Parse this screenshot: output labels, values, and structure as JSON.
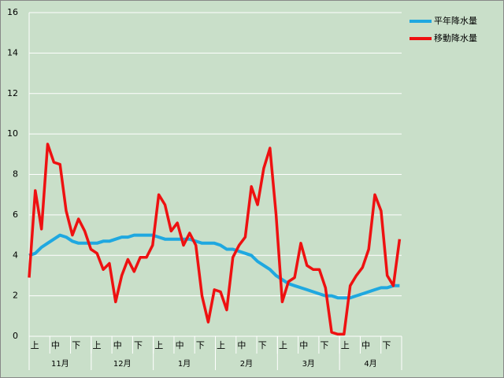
{
  "chart_data": {
    "type": "line",
    "x": [
      0,
      3,
      6,
      9,
      12,
      15,
      18,
      21,
      24,
      27,
      30,
      33,
      36,
      39,
      42,
      45,
      48,
      51,
      54,
      57,
      60,
      63,
      66,
      69,
      72,
      75,
      78,
      81,
      84,
      87,
      90,
      93,
      96,
      99,
      102,
      105,
      108,
      111,
      114,
      117,
      120,
      123,
      126,
      129,
      132,
      135,
      138,
      141,
      144,
      147,
      150,
      153,
      156,
      159,
      162,
      165,
      168,
      171,
      174,
      177,
      180
    ],
    "xlim": [
      0,
      181
    ],
    "month_groups": [
      {
        "label": "11月",
        "subs": [
          "上",
          "中",
          "下"
        ]
      },
      {
        "label": "12月",
        "subs": [
          "上",
          "中",
          "下"
        ]
      },
      {
        "label": "1月",
        "subs": [
          "上",
          "中",
          "下"
        ]
      },
      {
        "label": "2月",
        "subs": [
          "上",
          "中",
          "下"
        ]
      },
      {
        "label": "3月",
        "subs": [
          "上",
          "中",
          "下"
        ]
      },
      {
        "label": "4月",
        "subs": [
          "上",
          "中",
          "下"
        ]
      }
    ],
    "ylim": [
      0,
      16
    ],
    "yticks": [
      0,
      2,
      4,
      6,
      8,
      10,
      12,
      14,
      16
    ],
    "grid": true,
    "legend": "top-right",
    "series": [
      {
        "name": "平年降水量",
        "color": "#1fa8e0",
        "values": [
          4.0,
          4.1,
          4.4,
          4.6,
          4.8,
          5.0,
          4.9,
          4.7,
          4.6,
          4.6,
          4.6,
          4.6,
          4.7,
          4.7,
          4.8,
          4.9,
          4.9,
          5.0,
          5.0,
          5.0,
          5.0,
          4.9,
          4.8,
          4.8,
          4.8,
          4.8,
          4.8,
          4.7,
          4.6,
          4.6,
          4.6,
          4.5,
          4.3,
          4.3,
          4.2,
          4.1,
          4.0,
          3.7,
          3.5,
          3.3,
          3.0,
          2.8,
          2.6,
          2.5,
          2.4,
          2.3,
          2.2,
          2.1,
          2.0,
          2.0,
          1.9,
          1.9,
          1.9,
          2.0,
          2.1,
          2.2,
          2.3,
          2.4,
          2.4,
          2.5,
          2.5
        ]
      },
      {
        "name": "移動降水量",
        "color": "#ee1111",
        "values": [
          2.9,
          7.2,
          5.3,
          9.5,
          8.6,
          8.5,
          6.2,
          5.0,
          5.8,
          5.2,
          4.3,
          4.1,
          3.3,
          3.6,
          1.7,
          3.0,
          3.8,
          3.2,
          3.9,
          3.9,
          4.5,
          7.0,
          6.5,
          5.2,
          5.6,
          4.5,
          5.1,
          4.5,
          2.0,
          0.7,
          2.3,
          2.2,
          1.3,
          3.9,
          4.5,
          4.9,
          7.4,
          6.5,
          8.3,
          9.3,
          6.0,
          1.7,
          2.7,
          2.9,
          4.6,
          3.5,
          3.3,
          3.3,
          2.4,
          0.2,
          0.1,
          0.1,
          2.5,
          3.0,
          3.4,
          4.3,
          7.0,
          6.2,
          3.0,
          2.5,
          4.8
        ]
      }
    ]
  }
}
